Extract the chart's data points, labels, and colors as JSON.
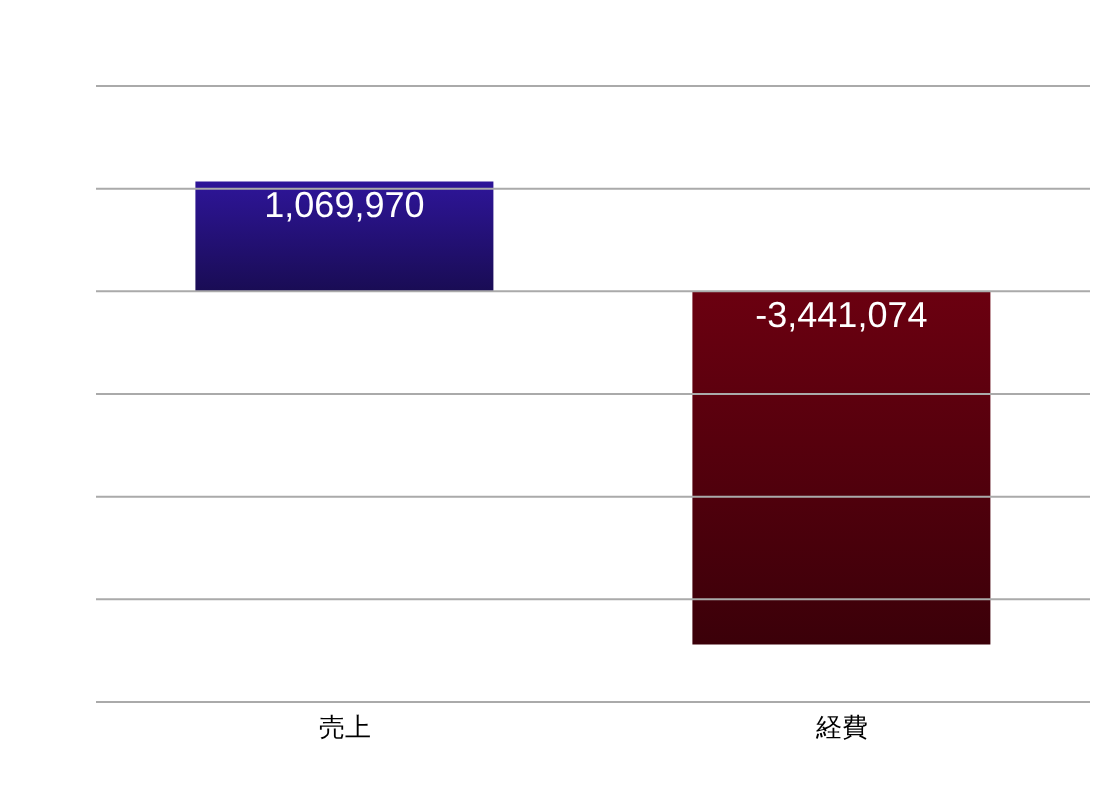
{
  "chart_data": {
    "type": "bar",
    "categories": [
      "売上",
      "経費"
    ],
    "values": [
      1069970,
      -3441074
    ],
    "colors": [
      "#2e1599",
      "#6b0010"
    ],
    "ylim": [
      -4000000,
      2000000
    ],
    "yticks": [
      {
        "value": -4000000,
        "label": null
      },
      {
        "value": -3000000,
        "label": null
      },
      {
        "value": -2000000,
        "label": null
      },
      {
        "value": -1000000,
        "label": null
      },
      {
        "value": 0,
        "label": null
      },
      {
        "value": 1000000,
        "label": null
      },
      {
        "value": 2000000,
        "label": null
      }
    ],
    "value_labels": [
      "1,069,970",
      "-3,441,074"
    ],
    "grid": "y",
    "tick_labels": "x"
  }
}
